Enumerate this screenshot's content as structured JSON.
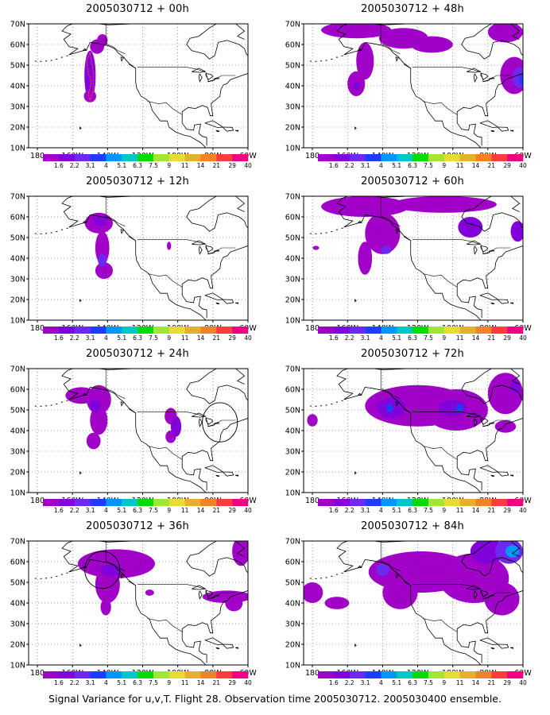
{
  "caption": "Signal Variance for u,v,T. Flight 28. Observation time 2005030712. 2005030400 ensemble.",
  "colorbar": {
    "labels": [
      "1.6",
      "2.2",
      "3.1",
      "4",
      "5.1",
      "6.3",
      "7.5",
      "9",
      "11",
      "14",
      "21",
      "29",
      "40"
    ],
    "colors": [
      "#a000c8",
      "#8200dc",
      "#6e28f0",
      "#1e3cff",
      "#0096ff",
      "#00c8c8",
      "#00dc00",
      "#a0e632",
      "#e6dc32",
      "#e6af2d",
      "#f08228",
      "#fa3c3c",
      "#f00082"
    ]
  },
  "axes": {
    "y_ticks": [
      "10N",
      "20N",
      "30N",
      "40N",
      "50N",
      "60N",
      "70N"
    ],
    "x_ticks": [
      "180",
      "160W",
      "140W",
      "120W",
      "100W",
      "80W",
      "60W"
    ]
  },
  "chart_data": [
    {
      "type": "heatmap",
      "title": "2005030712 + 00h",
      "xlim": [
        -185,
        -60
      ],
      "ylim": [
        10,
        70
      ],
      "features": [
        {
          "lon": -150,
          "lat": 45,
          "rx": 3.2,
          "ry": 12,
          "c": 1
        },
        {
          "lon": -150,
          "lat": 35,
          "rx": 3.5,
          "ry": 3,
          "c": 0
        },
        {
          "lon": -146,
          "lat": 59,
          "rx": 4,
          "ry": 3.5,
          "c": 0
        },
        {
          "lon": -143,
          "lat": 62,
          "rx": 3,
          "ry": 3,
          "c": 0
        }
      ],
      "outlines": [
        {
          "points": [
            [
              -152,
              52
            ],
            [
              -151,
              46
            ],
            [
              -149,
              42
            ],
            [
              -151,
              36
            ],
            [
              -150,
              33
            ],
            [
              -148,
              38
            ],
            [
              -148,
              46
            ],
            [
              -150,
              56
            ]
          ],
          "color": "#fa3c3c"
        }
      ]
    },
    {
      "type": "heatmap",
      "title": "2005030712 + 12h",
      "xlim": [
        -185,
        -60
      ],
      "ylim": [
        10,
        70
      ],
      "features": [
        {
          "lon": -145,
          "lat": 57,
          "rx": 8,
          "ry": 5,
          "c": 0
        },
        {
          "lon": -143,
          "lat": 45,
          "rx": 4,
          "ry": 8,
          "c": 0
        },
        {
          "lon": -142,
          "lat": 34,
          "rx": 5,
          "ry": 4,
          "c": 0
        },
        {
          "lon": -144,
          "lat": 58,
          "rx": 4,
          "ry": 2.5,
          "c": 1
        },
        {
          "lon": -143,
          "lat": 39,
          "rx": 2.5,
          "ry": 3,
          "c": 2
        },
        {
          "lon": -105,
          "lat": 46,
          "rx": 1.2,
          "ry": 2,
          "c": 0
        }
      ]
    },
    {
      "type": "heatmap",
      "title": "2005030712 + 24h",
      "xlim": [
        -185,
        -60
      ],
      "ylim": [
        10,
        70
      ],
      "features": [
        {
          "lon": -155,
          "lat": 57,
          "rx": 9,
          "ry": 4,
          "c": 0
        },
        {
          "lon": -145,
          "lat": 55,
          "rx": 7,
          "ry": 7,
          "c": 0
        },
        {
          "lon": -145,
          "lat": 45,
          "rx": 5,
          "ry": 7,
          "c": 0
        },
        {
          "lon": -148,
          "lat": 35,
          "rx": 4,
          "ry": 4,
          "c": 0
        },
        {
          "lon": -147,
          "lat": 52,
          "rx": 3,
          "ry": 3,
          "c": 1
        },
        {
          "lon": -104,
          "lat": 47,
          "rx": 3.5,
          "ry": 4,
          "c": 0
        },
        {
          "lon": -104,
          "lat": 37,
          "rx": 3,
          "ry": 3,
          "c": 0
        },
        {
          "lon": -101,
          "lat": 42,
          "rx": 3,
          "ry": 5,
          "c": 1
        }
      ],
      "outlines": [
        {
          "circle": {
            "lon": -76,
            "lat": 44,
            "rx": 10,
            "ry": 9.5
          },
          "color": "#000000"
        }
      ]
    },
    {
      "type": "heatmap",
      "title": "2005030712 + 36h",
      "xlim": [
        -185,
        -60
      ],
      "ylim": [
        10,
        70
      ],
      "features": [
        {
          "lon": -135,
          "lat": 59,
          "rx": 22,
          "ry": 7,
          "c": 0
        },
        {
          "lon": -140,
          "lat": 49,
          "rx": 7,
          "ry": 9,
          "c": 0
        },
        {
          "lon": -141,
          "lat": 38,
          "rx": 3,
          "ry": 4,
          "c": 0
        },
        {
          "lon": -138,
          "lat": 56,
          "rx": 6,
          "ry": 3,
          "c": 1
        },
        {
          "lon": -64,
          "lat": 65,
          "rx": 5,
          "ry": 7,
          "c": 0
        },
        {
          "lon": -72,
          "lat": 43,
          "rx": 14,
          "ry": 3,
          "c": 0
        },
        {
          "lon": -68,
          "lat": 40,
          "rx": 5,
          "ry": 4,
          "c": 0
        },
        {
          "lon": -116,
          "lat": 45,
          "rx": 2.5,
          "ry": 1.5,
          "c": 0
        }
      ],
      "outlines": [
        {
          "circle": {
            "lon": -143,
            "lat": 56,
            "rx": 10,
            "ry": 9
          },
          "color": "#000000"
        }
      ]
    },
    {
      "type": "heatmap",
      "title": "2005030712 + 48h",
      "xlim": [
        -185,
        -60
      ],
      "ylim": [
        10,
        70
      ],
      "features": [
        {
          "lon": -155,
          "lat": 67,
          "rx": 20,
          "ry": 4,
          "c": 0
        },
        {
          "lon": -128,
          "lat": 63,
          "rx": 14,
          "ry": 5,
          "c": 0
        },
        {
          "lon": -112,
          "lat": 60,
          "rx": 12,
          "ry": 4,
          "c": 0
        },
        {
          "lon": -150,
          "lat": 52,
          "rx": 5,
          "ry": 9,
          "c": 0
        },
        {
          "lon": -155,
          "lat": 41,
          "rx": 5,
          "ry": 6,
          "c": 0
        },
        {
          "lon": -155,
          "lat": 40,
          "rx": 2,
          "ry": 2,
          "c": 1
        },
        {
          "lon": -70,
          "lat": 66,
          "rx": 10,
          "ry": 5,
          "c": 0
        },
        {
          "lon": -65,
          "lat": 45,
          "rx": 8,
          "ry": 9,
          "c": 0
        },
        {
          "lon": -62,
          "lat": 44,
          "rx": 4,
          "ry": 5,
          "c": 2
        },
        {
          "lon": -60,
          "lat": 43,
          "rx": 2,
          "ry": 3,
          "c": 3
        }
      ]
    },
    {
      "type": "heatmap",
      "title": "2005030712 + 60h",
      "xlim": [
        -185,
        -60
      ],
      "ylim": [
        10,
        70
      ],
      "features": [
        {
          "lon": -150,
          "lat": 65,
          "rx": 25,
          "ry": 5,
          "c": 0
        },
        {
          "lon": -105,
          "lat": 66,
          "rx": 30,
          "ry": 4,
          "c": 0
        },
        {
          "lon": -140,
          "lat": 52,
          "rx": 10,
          "ry": 10,
          "c": 0
        },
        {
          "lon": -150,
          "lat": 40,
          "rx": 4,
          "ry": 8,
          "c": 0
        },
        {
          "lon": -138,
          "lat": 44,
          "rx": 3,
          "ry": 2,
          "c": 2
        },
        {
          "lon": -90,
          "lat": 55,
          "rx": 7,
          "ry": 5,
          "c": 1
        },
        {
          "lon": -63,
          "lat": 53,
          "rx": 4,
          "ry": 5,
          "c": 1
        },
        {
          "lon": -178,
          "lat": 45,
          "rx": 1.8,
          "ry": 1,
          "c": 0
        }
      ]
    },
    {
      "type": "heatmap",
      "title": "2005030712 + 72h",
      "xlim": [
        -185,
        -60
      ],
      "ylim": [
        10,
        70
      ],
      "features": [
        {
          "lon": -120,
          "lat": 52,
          "rx": 30,
          "ry": 10,
          "c": 0
        },
        {
          "lon": -98,
          "lat": 50,
          "rx": 18,
          "ry": 10,
          "c": 0
        },
        {
          "lon": -70,
          "lat": 58,
          "rx": 10,
          "ry": 10,
          "c": 0
        },
        {
          "lon": -135,
          "lat": 51,
          "rx": 8,
          "ry": 5,
          "c": 1
        },
        {
          "lon": -100,
          "lat": 51,
          "rx": 8,
          "ry": 4,
          "c": 1
        },
        {
          "lon": -136,
          "lat": 51,
          "rx": 2,
          "ry": 2,
          "c": 3
        },
        {
          "lon": -96,
          "lat": 51,
          "rx": 2,
          "ry": 2,
          "c": 3
        },
        {
          "lon": -180,
          "lat": 45,
          "rx": 3,
          "ry": 3,
          "c": 0
        },
        {
          "lon": -70,
          "lat": 42,
          "rx": 6,
          "ry": 3,
          "c": 0
        },
        {
          "lon": -64,
          "lat": 61,
          "rx": 3,
          "ry": 3,
          "c": 1
        }
      ]
    },
    {
      "type": "heatmap",
      "title": "2005030712 + 84h",
      "xlim": [
        -185,
        -60
      ],
      "ylim": [
        10,
        70
      ],
      "features": [
        {
          "lon": -118,
          "lat": 55,
          "rx": 30,
          "ry": 10,
          "c": 0
        },
        {
          "lon": -88,
          "lat": 52,
          "rx": 20,
          "ry": 12,
          "c": 0
        },
        {
          "lon": -72,
          "lat": 42,
          "rx": 10,
          "ry": 8,
          "c": 0
        },
        {
          "lon": -130,
          "lat": 45,
          "rx": 10,
          "ry": 8,
          "c": 0
        },
        {
          "lon": -180,
          "lat": 45,
          "rx": 6,
          "ry": 5,
          "c": 0
        },
        {
          "lon": -166,
          "lat": 40,
          "rx": 7,
          "ry": 3,
          "c": 0
        },
        {
          "lon": -140,
          "lat": 56,
          "rx": 4,
          "ry": 3,
          "c": 2
        },
        {
          "lon": -80,
          "lat": 65,
          "rx": 10,
          "ry": 6,
          "c": 1
        },
        {
          "lon": -68,
          "lat": 65,
          "rx": 8,
          "ry": 6,
          "c": 2
        },
        {
          "lon": -66,
          "lat": 65,
          "rx": 4,
          "ry": 3,
          "c": 4
        }
      ]
    }
  ]
}
